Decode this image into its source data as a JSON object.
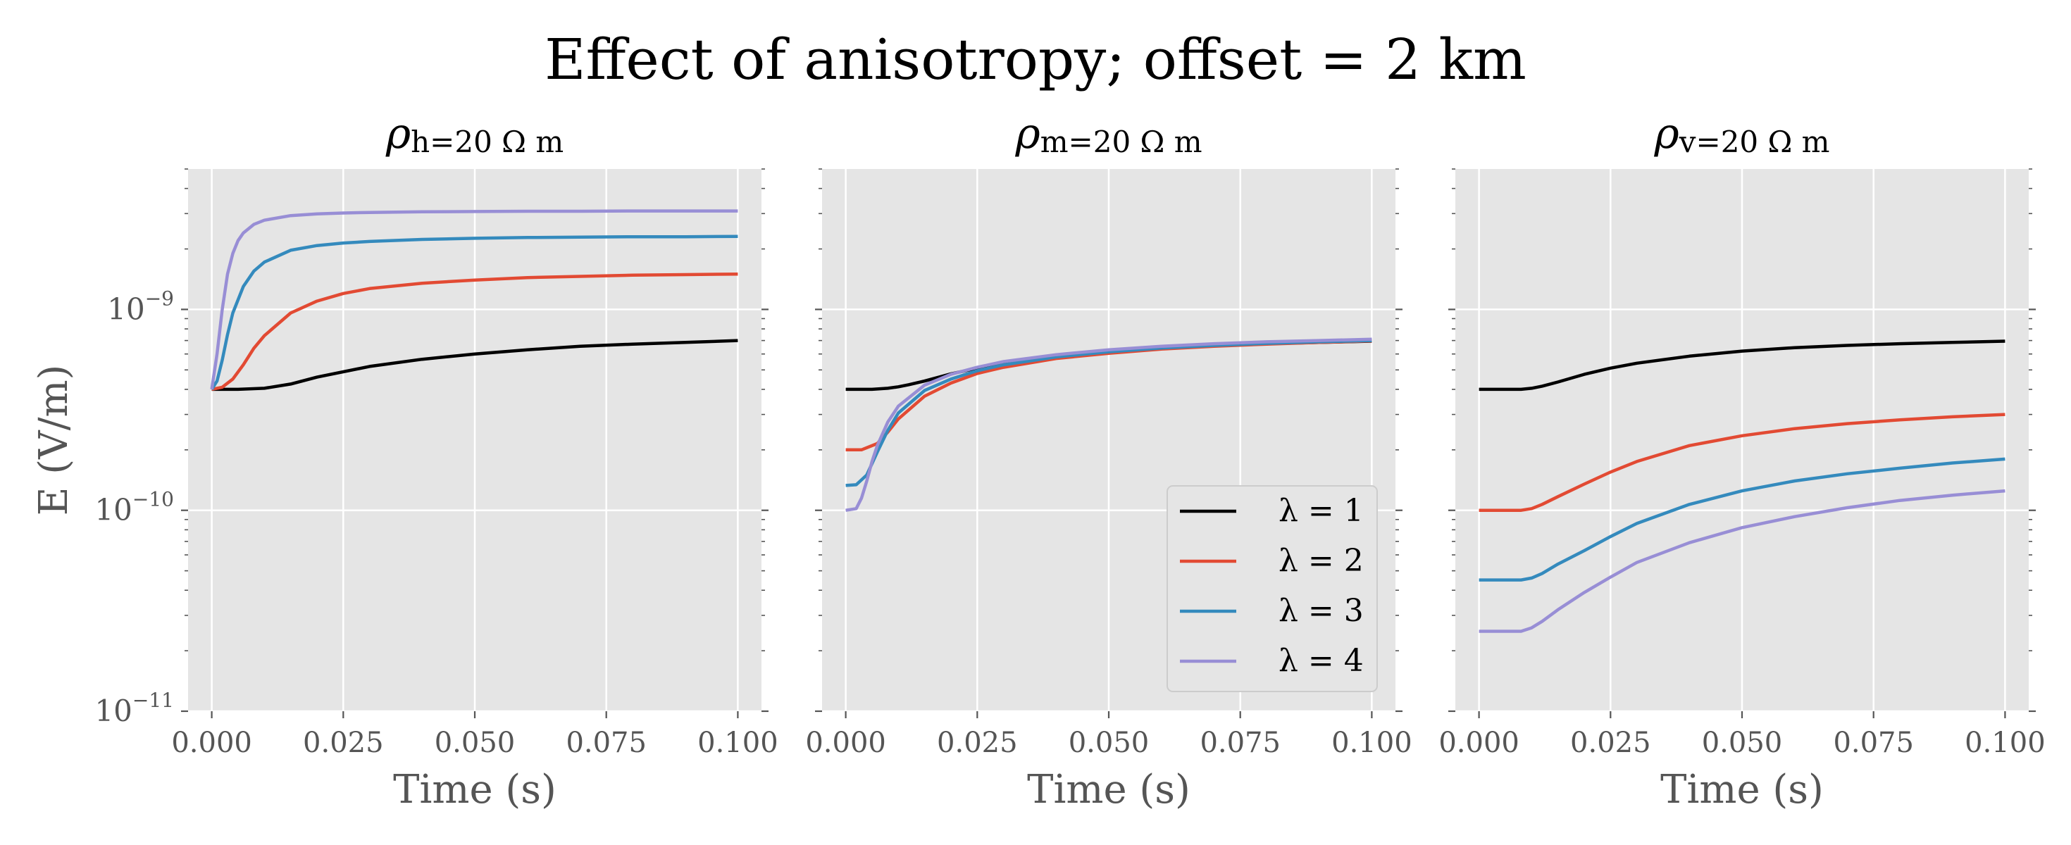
{
  "figure": {
    "title": "Effect of anisotropy; offset = 2 km"
  },
  "chart_data": [
    {
      "type": "line",
      "title": "ρh=20 Ω m",
      "title_symbol": "ρ",
      "title_subscript": "h=20 Ω m",
      "xlabel": "Time (s)",
      "ylabel": "E (V/m)",
      "xlim": [
        -0.0045,
        0.1045
      ],
      "ylim": [
        1e-11,
        5e-09
      ],
      "yscale": "log",
      "xticks": [
        "0.000",
        "0.025",
        "0.050",
        "0.075",
        "0.100"
      ],
      "yticks": [
        {
          "base": "10",
          "exp": "−11",
          "value": 1e-11
        },
        {
          "base": "10",
          "exp": "−10",
          "value": 1e-10
        },
        {
          "base": "10",
          "exp": "−9",
          "value": 1e-09
        }
      ],
      "grid": true,
      "background": "#e5e5e5",
      "series": [
        {
          "name": "λ = 1",
          "color": "#000000",
          "x": [
            0,
            0.005,
            0.01,
            0.015,
            0.02,
            0.03,
            0.04,
            0.05,
            0.06,
            0.07,
            0.08,
            0.09,
            0.1
          ],
          "y": [
            4e-10,
            4e-10,
            4.05e-10,
            4.25e-10,
            4.6e-10,
            5.2e-10,
            5.65e-10,
            6e-10,
            6.3e-10,
            6.55e-10,
            6.72e-10,
            6.85e-10,
            7e-10
          ]
        },
        {
          "name": "λ = 2",
          "color": "#e24a33",
          "x": [
            0,
            0.002,
            0.004,
            0.006,
            0.008,
            0.01,
            0.015,
            0.02,
            0.025,
            0.03,
            0.04,
            0.05,
            0.06,
            0.07,
            0.08,
            0.09,
            0.1
          ],
          "y": [
            4e-10,
            4.1e-10,
            4.5e-10,
            5.3e-10,
            6.4e-10,
            7.4e-10,
            9.6e-10,
            1.1e-09,
            1.2e-09,
            1.27e-09,
            1.35e-09,
            1.4e-09,
            1.44e-09,
            1.46e-09,
            1.48e-09,
            1.49e-09,
            1.5e-09
          ]
        },
        {
          "name": "λ = 3",
          "color": "#348abd",
          "x": [
            0,
            0.001,
            0.002,
            0.003,
            0.004,
            0.006,
            0.008,
            0.01,
            0.015,
            0.02,
            0.025,
            0.03,
            0.04,
            0.05,
            0.06,
            0.07,
            0.08,
            0.09,
            0.1
          ],
          "y": [
            4e-10,
            4.4e-10,
            5.6e-10,
            7.5e-10,
            9.6e-10,
            1.3e-09,
            1.55e-09,
            1.72e-09,
            1.97e-09,
            2.08e-09,
            2.14e-09,
            2.18e-09,
            2.23e-09,
            2.26e-09,
            2.28e-09,
            2.29e-09,
            2.3e-09,
            2.3e-09,
            2.31e-09
          ]
        },
        {
          "name": "λ = 4",
          "color": "#988ed5",
          "x": [
            0,
            0.001,
            0.002,
            0.003,
            0.004,
            0.005,
            0.006,
            0.008,
            0.01,
            0.015,
            0.02,
            0.025,
            0.03,
            0.04,
            0.05,
            0.06,
            0.07,
            0.08,
            0.09,
            0.1
          ],
          "y": [
            4e-10,
            6e-10,
            1e-09,
            1.5e-09,
            1.9e-09,
            2.2e-09,
            2.4e-09,
            2.65e-09,
            2.78e-09,
            2.93e-09,
            2.99e-09,
            3.02e-09,
            3.04e-09,
            3.06e-09,
            3.07e-09,
            3.08e-09,
            3.08e-09,
            3.09e-09,
            3.09e-09,
            3.09e-09
          ]
        }
      ]
    },
    {
      "type": "line",
      "title": "ρm=20 Ω m",
      "title_symbol": "ρ",
      "title_subscript": "m=20 Ω m",
      "xlabel": "Time (s)",
      "ylabel": "",
      "xlim": [
        -0.0045,
        0.1045
      ],
      "ylim": [
        1e-11,
        5e-09
      ],
      "yscale": "log",
      "xticks": [
        "0.000",
        "0.025",
        "0.050",
        "0.075",
        "0.100"
      ],
      "yticks": [],
      "grid": true,
      "background": "#e5e5e5",
      "legend": {
        "position": "lower right"
      },
      "series": [
        {
          "name": "λ = 1",
          "color": "#000000",
          "x": [
            0,
            0.005,
            0.008,
            0.01,
            0.012,
            0.015,
            0.02,
            0.025,
            0.03,
            0.04,
            0.05,
            0.06,
            0.07,
            0.08,
            0.09,
            0.1
          ],
          "y": [
            4e-10,
            4e-10,
            4.05e-10,
            4.12e-10,
            4.22e-10,
            4.4e-10,
            4.78e-10,
            5.1e-10,
            5.4e-10,
            5.85e-10,
            6.2e-10,
            6.45e-10,
            6.62e-10,
            6.75e-10,
            6.85e-10,
            6.95e-10
          ]
        },
        {
          "name": "λ = 2",
          "color": "#e24a33",
          "x": [
            0,
            0.003,
            0.006,
            0.008,
            0.01,
            0.015,
            0.02,
            0.025,
            0.03,
            0.04,
            0.05,
            0.06,
            0.07,
            0.08,
            0.09,
            0.1
          ],
          "y": [
            2e-10,
            2e-10,
            2.15e-10,
            2.45e-10,
            2.85e-10,
            3.7e-10,
            4.3e-10,
            4.8e-10,
            5.15e-10,
            5.7e-10,
            6.05e-10,
            6.35e-10,
            6.55e-10,
            6.72e-10,
            6.85e-10,
            6.97e-10
          ]
        },
        {
          "name": "λ = 3",
          "color": "#348abd",
          "x": [
            0,
            0.002,
            0.004,
            0.006,
            0.008,
            0.01,
            0.015,
            0.02,
            0.025,
            0.03,
            0.04,
            0.05,
            0.06,
            0.07,
            0.08,
            0.09,
            0.1
          ],
          "y": [
            1.33e-10,
            1.34e-10,
            1.5e-10,
            1.95e-10,
            2.5e-10,
            3.05e-10,
            3.95e-10,
            4.5e-10,
            4.95e-10,
            5.3e-10,
            5.8e-10,
            6.15e-10,
            6.42e-10,
            6.62e-10,
            6.78e-10,
            6.9e-10,
            7e-10
          ]
        },
        {
          "name": "λ = 4",
          "color": "#988ed5",
          "x": [
            0,
            0.002,
            0.003,
            0.004,
            0.005,
            0.006,
            0.008,
            0.01,
            0.015,
            0.02,
            0.025,
            0.03,
            0.04,
            0.05,
            0.06,
            0.07,
            0.08,
            0.09,
            0.1
          ],
          "y": [
            1e-10,
            1.02e-10,
            1.15e-10,
            1.4e-10,
            1.75e-10,
            2.1e-10,
            2.75e-10,
            3.3e-10,
            4.2e-10,
            4.75e-10,
            5.15e-10,
            5.5e-10,
            5.95e-10,
            6.3e-10,
            6.55e-10,
            6.75e-10,
            6.9e-10,
            7e-10,
            7.1e-10
          ]
        }
      ]
    },
    {
      "type": "line",
      "title": "ρv=20 Ω m",
      "title_symbol": "ρ",
      "title_subscript": "v=20 Ω m",
      "xlabel": "Time (s)",
      "ylabel": "",
      "xlim": [
        -0.0045,
        0.1045
      ],
      "ylim": [
        1e-11,
        5e-09
      ],
      "yscale": "log",
      "xticks": [
        "0.000",
        "0.025",
        "0.050",
        "0.075",
        "0.100"
      ],
      "yticks": [],
      "grid": true,
      "background": "#e5e5e5",
      "series": [
        {
          "name": "λ = 1",
          "color": "#000000",
          "x": [
            0,
            0.008,
            0.01,
            0.012,
            0.015,
            0.02,
            0.025,
            0.03,
            0.04,
            0.05,
            0.06,
            0.07,
            0.08,
            0.09,
            0.1
          ],
          "y": [
            4e-10,
            4e-10,
            4.05e-10,
            4.15e-10,
            4.35e-10,
            4.75e-10,
            5.1e-10,
            5.4e-10,
            5.85e-10,
            6.2e-10,
            6.45e-10,
            6.62e-10,
            6.75e-10,
            6.85e-10,
            6.95e-10
          ]
        },
        {
          "name": "λ = 2",
          "color": "#e24a33",
          "x": [
            0,
            0.008,
            0.01,
            0.012,
            0.015,
            0.02,
            0.025,
            0.03,
            0.04,
            0.05,
            0.06,
            0.07,
            0.08,
            0.09,
            0.1
          ],
          "y": [
            1e-10,
            1e-10,
            1.02e-10,
            1.07e-10,
            1.17e-10,
            1.35e-10,
            1.55e-10,
            1.75e-10,
            2.1e-10,
            2.35e-10,
            2.55e-10,
            2.7e-10,
            2.82e-10,
            2.92e-10,
            3e-10
          ]
        },
        {
          "name": "λ = 3",
          "color": "#348abd",
          "x": [
            0,
            0.008,
            0.01,
            0.012,
            0.015,
            0.02,
            0.025,
            0.03,
            0.04,
            0.05,
            0.06,
            0.07,
            0.08,
            0.09,
            0.1
          ],
          "y": [
            4.5e-11,
            4.5e-11,
            4.6e-11,
            4.85e-11,
            5.4e-11,
            6.3e-11,
            7.4e-11,
            8.6e-11,
            1.07e-10,
            1.25e-10,
            1.4e-10,
            1.52e-10,
            1.62e-10,
            1.72e-10,
            1.8e-10
          ]
        },
        {
          "name": "λ = 4",
          "color": "#988ed5",
          "x": [
            0,
            0.008,
            0.01,
            0.012,
            0.015,
            0.02,
            0.025,
            0.03,
            0.04,
            0.05,
            0.06,
            0.07,
            0.08,
            0.09,
            0.1
          ],
          "y": [
            2.5e-11,
            2.5e-11,
            2.6e-11,
            2.8e-11,
            3.2e-11,
            3.9e-11,
            4.65e-11,
            5.5e-11,
            6.9e-11,
            8.2e-11,
            9.3e-11,
            1.03e-10,
            1.12e-10,
            1.19e-10,
            1.25e-10
          ]
        }
      ]
    }
  ]
}
